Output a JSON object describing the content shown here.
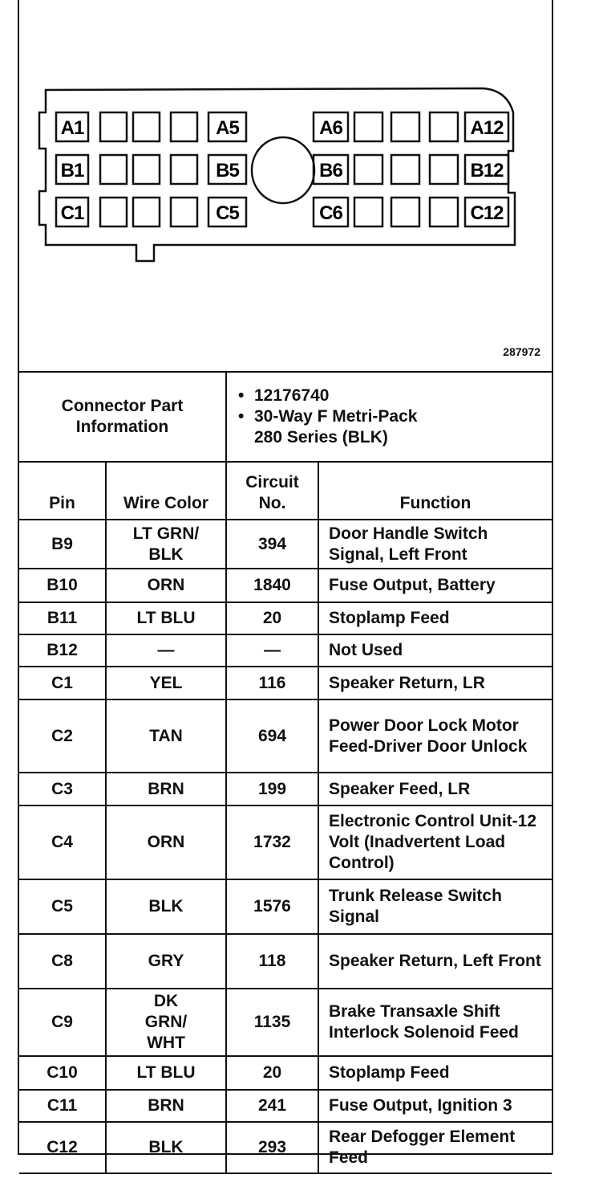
{
  "figure_number": "287972",
  "connector": {
    "rows": [
      {
        "labels": [
          "A1",
          "",
          "",
          "",
          "A5",
          "A6",
          "",
          "",
          "",
          "A12"
        ]
      },
      {
        "labels": [
          "B1",
          "",
          "",
          "",
          "B5",
          "B6",
          "",
          "",
          "",
          "B12"
        ]
      },
      {
        "labels": [
          "C1",
          "",
          "",
          "",
          "C5",
          "C6",
          "",
          "",
          "",
          "C12"
        ]
      }
    ]
  },
  "info": {
    "label": "Connector Part Information",
    "items": [
      "12176740",
      "30-Way F Metri-Pack 280 Series (BLK)"
    ]
  },
  "headers": {
    "pin": "Pin",
    "wire_color": "Wire Color",
    "circuit": "Circuit No.",
    "function": "Function"
  },
  "rows": [
    {
      "pin": "B9",
      "wire": "LT GRN/ BLK",
      "circuit": "394",
      "function": "Door Handle Switch Signal, Left Front"
    },
    {
      "pin": "B10",
      "wire": "ORN",
      "circuit": "1840",
      "function": "Fuse Output, Battery"
    },
    {
      "pin": "B11",
      "wire": "LT BLU",
      "circuit": "20",
      "function": "Stoplamp Feed"
    },
    {
      "pin": "B12",
      "wire": "—",
      "circuit": "—",
      "function": "Not Used"
    },
    {
      "pin": "C1",
      "wire": "YEL",
      "circuit": "116",
      "function": "Speaker Return, LR"
    },
    {
      "pin": "C2",
      "wire": "TAN",
      "circuit": "694",
      "function": "Power Door Lock Motor Feed-Driver Door Unlock"
    },
    {
      "pin": "C3",
      "wire": "BRN",
      "circuit": "199",
      "function": "Speaker Feed, LR"
    },
    {
      "pin": "C4",
      "wire": "ORN",
      "circuit": "1732",
      "function": "Electronic Control Unit-12 Volt (Inadvertent Load Control)"
    },
    {
      "pin": "C5",
      "wire": "BLK",
      "circuit": "1576",
      "function": "Trunk Release Switch Signal"
    },
    {
      "pin": "C8",
      "wire": "GRY",
      "circuit": "118",
      "function": "Speaker Return, Left Front"
    },
    {
      "pin": "C9",
      "wire": "DK GRN/ WHT",
      "circuit": "1135",
      "function": "Brake Transaxle Shift Interlock Solenoid Feed"
    },
    {
      "pin": "C10",
      "wire": "LT BLU",
      "circuit": "20",
      "function": "Stoplamp Feed"
    },
    {
      "pin": "C11",
      "wire": "BRN",
      "circuit": "241",
      "function": "Fuse Output, Ignition 3"
    },
    {
      "pin": "C12",
      "wire": "BLK",
      "circuit": "293",
      "function": "Rear Defogger Element Feed"
    }
  ]
}
